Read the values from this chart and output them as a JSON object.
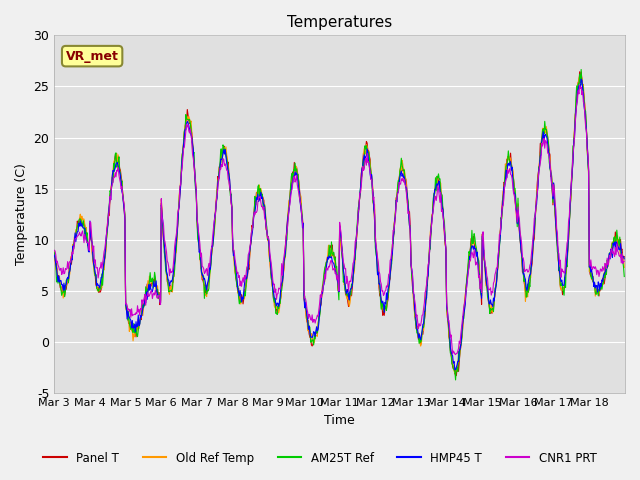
{
  "title": "Temperatures",
  "xlabel": "Time",
  "ylabel": "Temperature (C)",
  "ylim": [
    -5,
    30
  ],
  "series_colors": {
    "Panel T": "#cc0000",
    "Old Ref Temp": "#ff9900",
    "AM25T Ref": "#00cc00",
    "HMP45 T": "#0000ff",
    "CNR1 PRT": "#cc00cc"
  },
  "series_order": [
    "Panel T",
    "Old Ref Temp",
    "AM25T Ref",
    "HMP45 T",
    "CNR1 PRT"
  ],
  "xtick_labels": [
    "Mar 3",
    "Mar 4",
    "Mar 5",
    "Mar 6",
    "Mar 7",
    "Mar 8",
    "Mar 9",
    "Mar 10",
    "Mar 11",
    "Mar 12",
    "Mar 13",
    "Mar 14",
    "Mar 15",
    "Mar 16",
    "Mar 17",
    "Mar 18"
  ],
  "ytick_labels": [
    "-5",
    "0",
    "5",
    "10",
    "15",
    "20",
    "25",
    "30"
  ],
  "ytick_values": [
    -5,
    0,
    5,
    10,
    15,
    20,
    25,
    30
  ],
  "plot_bg_color": "#e0e0e0",
  "fig_bg_color": "#f0f0f0",
  "legend_label_box": "VR_met",
  "legend_box_bg": "#ffff99",
  "legend_box_border": "#888833",
  "legend_box_text": "#880000",
  "n_days": 16,
  "daily_max": [
    12,
    18,
    6,
    22,
    19,
    15,
    17,
    9,
    19,
    17,
    16,
    10,
    18,
    21,
    26,
    10
  ],
  "daily_min": [
    5,
    5,
    1,
    5,
    5,
    4,
    3,
    0,
    4,
    3,
    0,
    -3,
    3,
    5,
    5,
    5
  ]
}
